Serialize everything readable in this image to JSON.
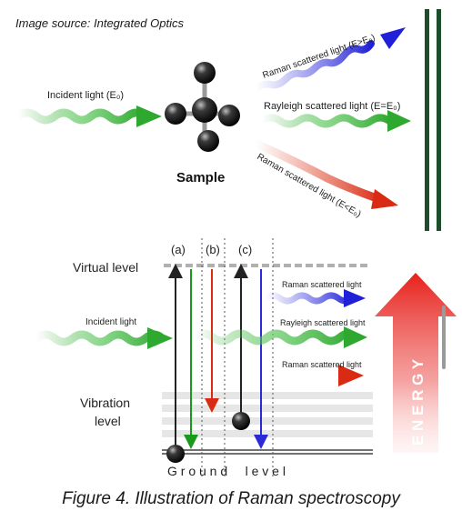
{
  "image_source": "Image source: Integrated Optics",
  "top": {
    "incident_label": "Incident light (E₀)",
    "sample_label": "Sample",
    "raman_high_label": "Raman scattered light (E>E₀)",
    "rayleigh_label": "Rayleigh scattered light (E=E₀)",
    "raman_low_label": "Raman scattered light (E<E₀)"
  },
  "bottom": {
    "virtual_level": "Virtual level",
    "vibration_level": "Vibration level",
    "vibration_line1": "Vibration",
    "vibration_line2": "level",
    "ground_level": "G r o u n d     l e v e l",
    "incident_label": "Incident light",
    "raman_high_label": "Raman scattered light",
    "rayleigh_label": "Rayleigh scattered light",
    "raman_low_label": "Raman scattered light",
    "panel_a": "(a)",
    "panel_b": "(b)",
    "panel_c": "(c)",
    "energy_label": "E N E R G Y"
  },
  "caption": "Figure 4. Illustration of Raman spectroscopy",
  "colors": {
    "incident_green": "#2fa82f",
    "raman_blue": "#2a2ad6",
    "raman_red": "#d92a14",
    "dark_green_bars": "#1e4d2b"
  }
}
